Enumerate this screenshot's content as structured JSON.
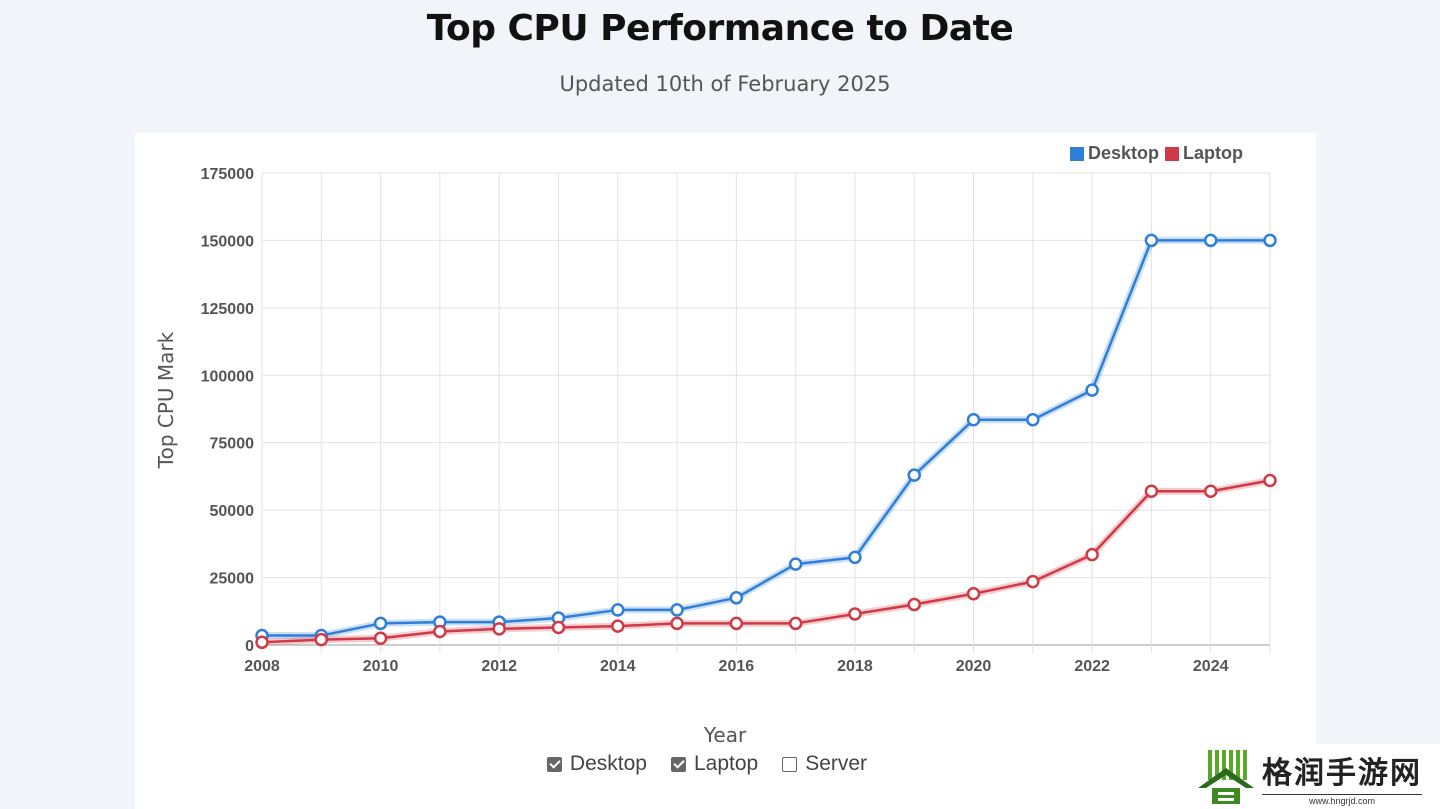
{
  "title": "Top CPU Performance to Date",
  "subtitle": "Updated 10th of February 2025",
  "legend": [
    {
      "label": "Desktop",
      "color": "#2f7fd8"
    },
    {
      "label": "Laptop",
      "color": "#d03a46"
    }
  ],
  "filters": [
    {
      "label": "Desktop",
      "checked": true
    },
    {
      "label": "Laptop",
      "checked": true
    },
    {
      "label": "Server",
      "checked": false
    }
  ],
  "watermark": {
    "name": "格润手游网",
    "url": "www.hngrjd.com"
  },
  "chart_data": {
    "type": "line",
    "title": "Top CPU Performance to Date",
    "subtitle": "Updated 10th of February 2025",
    "xlabel": "Year",
    "ylabel": "Top CPU Mark",
    "x": [
      2008,
      2009,
      2010,
      2011,
      2012,
      2013,
      2014,
      2015,
      2016,
      2017,
      2018,
      2019,
      2020,
      2021,
      2022,
      2023,
      2024,
      2025
    ],
    "xlim": [
      2008,
      2025
    ],
    "ylim": [
      0,
      175000
    ],
    "xticks": [
      "2008",
      "2010",
      "2012",
      "2014",
      "2016",
      "2018",
      "2020",
      "2022",
      "2024"
    ],
    "yticks": [
      "0",
      "25000",
      "50000",
      "75000",
      "100000",
      "125000",
      "150000",
      "175000"
    ],
    "grid": true,
    "legend_position": "top-right",
    "series": [
      {
        "name": "Desktop",
        "color": "#2f7fd8",
        "values": [
          3500,
          3500,
          8000,
          8500,
          8500,
          10000,
          13000,
          13000,
          17500,
          30000,
          32500,
          63000,
          83500,
          83500,
          94500,
          150000,
          150000,
          150000
        ]
      },
      {
        "name": "Laptop",
        "color": "#d03a46",
        "values": [
          1000,
          2000,
          2500,
          5000,
          6000,
          6500,
          7000,
          8000,
          8000,
          8000,
          11500,
          15000,
          19000,
          23500,
          33500,
          57000,
          57000,
          61000
        ]
      }
    ]
  }
}
